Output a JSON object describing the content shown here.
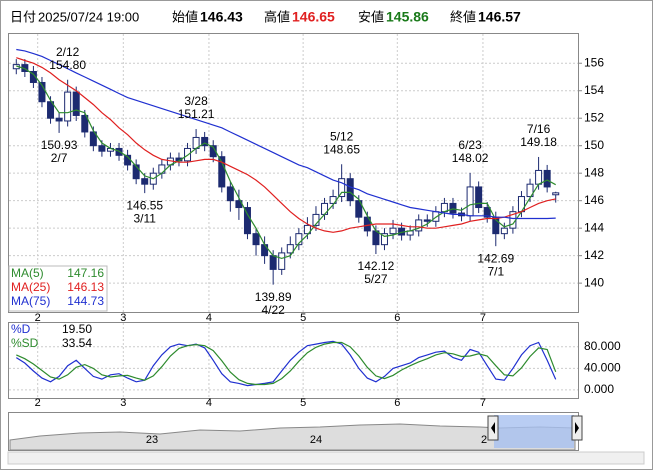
{
  "chart_data": {
    "type": "candlestick",
    "header": {
      "date_label": "日付",
      "date": "2025/07/24 19:00",
      "open_label": "始値",
      "open": 146.43,
      "high_label": "高値",
      "high": 146.65,
      "low_label": "安値",
      "low": 145.86,
      "close_label": "終値",
      "close": 146.57
    },
    "ylim": [
      137.9,
      158.2
    ],
    "yticks": [
      140,
      142,
      144,
      146,
      148,
      150,
      152,
      154,
      156
    ],
    "grid": true,
    "xticks": [
      {
        "value": 3,
        "label": "2"
      },
      {
        "value": 13,
        "label": "3"
      },
      {
        "value": 23,
        "label": "4"
      },
      {
        "value": 34,
        "label": "5"
      },
      {
        "value": 45,
        "label": "6"
      },
      {
        "value": 55,
        "label": "7"
      }
    ],
    "up_color": "#ffffff",
    "down_color": "#1c2a70",
    "open": [
      155.6,
      155.9,
      155.4,
      154.6,
      153.2,
      152.0,
      151.8,
      153.9,
      152.2,
      151.0,
      150.0,
      149.6,
      149.8,
      149.3,
      148.6,
      147.6,
      147.2,
      148.0,
      148.6,
      149.1,
      148.9,
      149.8,
      150.6,
      150.0,
      149.2,
      147.0,
      146.0,
      145.5,
      143.6,
      142.8,
      142.0,
      141.0,
      142.2,
      142.8,
      143.6,
      144.2,
      145.0,
      145.8,
      146.3,
      147.6,
      146.0,
      144.8,
      143.8,
      142.8,
      143.6,
      144.0,
      143.5,
      143.8,
      144.6,
      144.5,
      145.2,
      145.8,
      145.1,
      144.9,
      147.0,
      145.5,
      144.8,
      143.6,
      144.0,
      145.2,
      146.3,
      147.2,
      148.2,
      146.43
    ],
    "high": [
      156.3,
      156.3,
      155.8,
      155.0,
      153.6,
      152.4,
      154.8,
      154.3,
      152.6,
      151.4,
      150.4,
      150.2,
      150.2,
      149.7,
      149.0,
      148.0,
      148.4,
      149.0,
      149.5,
      149.5,
      150.2,
      151.21,
      151.0,
      150.4,
      149.6,
      147.4,
      146.8,
      145.9,
      144.0,
      143.4,
      142.4,
      142.6,
      143.4,
      144.0,
      144.8,
      145.6,
      146.2,
      146.8,
      148.65,
      148.0,
      146.4,
      145.2,
      144.2,
      144.0,
      144.6,
      144.4,
      144.2,
      145.0,
      145.0,
      145.6,
      146.2,
      146.2,
      145.5,
      148.02,
      147.4,
      145.9,
      145.2,
      144.4,
      145.6,
      146.7,
      147.6,
      149.18,
      148.6,
      146.65
    ],
    "low": [
      155.2,
      155.0,
      154.2,
      152.8,
      151.6,
      150.93,
      151.4,
      151.8,
      150.6,
      149.6,
      149.2,
      149.2,
      148.9,
      148.2,
      147.2,
      146.55,
      146.8,
      147.6,
      148.2,
      148.5,
      148.5,
      149.4,
      149.6,
      148.8,
      146.6,
      145.2,
      144.6,
      143.2,
      142.0,
      141.4,
      139.89,
      140.6,
      141.8,
      142.4,
      143.2,
      143.8,
      144.6,
      145.4,
      145.9,
      145.6,
      144.4,
      143.4,
      142.12,
      142.4,
      143.2,
      143.1,
      143.1,
      143.4,
      144.1,
      144.1,
      144.8,
      144.7,
      144.5,
      144.5,
      145.1,
      144.4,
      142.69,
      143.2,
      143.6,
      144.8,
      145.9,
      146.8,
      146.6,
      145.86
    ],
    "close": [
      155.9,
      155.4,
      154.6,
      153.2,
      152.0,
      151.8,
      153.9,
      152.2,
      151.0,
      150.0,
      149.6,
      149.8,
      149.3,
      148.6,
      147.6,
      147.2,
      148.0,
      148.6,
      149.1,
      148.9,
      149.8,
      150.6,
      150.0,
      149.2,
      147.0,
      146.0,
      145.5,
      143.6,
      142.8,
      142.0,
      141.0,
      142.2,
      142.8,
      143.6,
      144.2,
      145.0,
      145.8,
      146.3,
      147.6,
      146.0,
      144.8,
      143.8,
      142.8,
      143.6,
      144.0,
      143.5,
      143.8,
      144.6,
      144.5,
      145.2,
      145.8,
      145.1,
      144.9,
      147.0,
      145.5,
      144.8,
      143.6,
      144.0,
      145.2,
      146.3,
      147.2,
      148.2,
      147.0,
      146.57
    ],
    "series": [
      {
        "name": "MA(5)",
        "color": "#2e8b2e",
        "last": 147.16,
        "values": [
          155.8,
          155.6,
          155.2,
          154.4,
          153.3,
          152.4,
          152.4,
          152.6,
          152.4,
          151.1,
          150.2,
          149.8,
          149.6,
          149.2,
          148.5,
          147.8,
          147.6,
          148.0,
          148.6,
          148.9,
          149.3,
          149.8,
          150.2,
          149.9,
          148.8,
          147.4,
          146.2,
          145.0,
          144.0,
          142.8,
          142.0,
          141.8,
          142.0,
          142.9,
          143.5,
          144.3,
          145.0,
          145.7,
          146.6,
          146.6,
          146.1,
          144.9,
          143.8,
          143.4,
          143.5,
          143.7,
          143.8,
          144.0,
          144.3,
          144.8,
          145.2,
          145.4,
          145.3,
          145.7,
          145.8,
          145.8,
          144.6,
          144.1,
          144.3,
          145.2,
          146.2,
          147.2,
          147.5,
          147.16
        ]
      },
      {
        "name": "MA(25)",
        "color": "#e02020",
        "last": 146.13,
        "values": [
          156.4,
          156.2,
          156.0,
          155.7,
          155.3,
          154.8,
          154.4,
          154.0,
          153.5,
          153.0,
          152.4,
          151.9,
          151.3,
          150.8,
          150.2,
          149.7,
          149.3,
          149.0,
          148.9,
          148.8,
          148.8,
          148.9,
          149.0,
          149.0,
          148.8,
          148.5,
          148.2,
          147.9,
          147.5,
          147.0,
          146.4,
          145.8,
          145.2,
          144.7,
          144.3,
          144.0,
          143.8,
          143.7,
          143.8,
          144.0,
          144.1,
          144.2,
          144.3,
          144.3,
          144.3,
          144.2,
          144.1,
          144.1,
          144.0,
          144.0,
          144.1,
          144.2,
          144.3,
          144.5,
          144.6,
          144.7,
          144.7,
          144.8,
          145.0,
          145.2,
          145.5,
          145.8,
          146.0,
          146.13
        ]
      },
      {
        "name": "MA(75)",
        "color": "#2030d0",
        "last": 144.73,
        "values": [
          157.0,
          156.9,
          156.7,
          156.5,
          156.2,
          155.9,
          155.6,
          155.3,
          155.0,
          154.7,
          154.4,
          154.1,
          153.8,
          153.5,
          153.3,
          153.1,
          152.9,
          152.7,
          152.5,
          152.3,
          152.1,
          151.9,
          151.7,
          151.5,
          151.3,
          151.0,
          150.7,
          150.4,
          150.1,
          149.8,
          149.5,
          149.2,
          148.9,
          148.6,
          148.4,
          148.1,
          147.8,
          147.5,
          147.3,
          147.0,
          146.8,
          146.5,
          146.3,
          146.1,
          145.9,
          145.7,
          145.5,
          145.4,
          145.3,
          145.2,
          145.1,
          145.0,
          145.0,
          144.9,
          144.9,
          144.9,
          144.8,
          144.8,
          144.7,
          144.7,
          144.7,
          144.7,
          144.7,
          144.73
        ]
      }
    ],
    "annotations": [
      {
        "date": "2/12",
        "value": 154.8,
        "label": "154.80",
        "position": "above"
      },
      {
        "date": "2/7",
        "value": 150.93,
        "label": "150.93",
        "position": "below"
      },
      {
        "date": "3/11",
        "value": 146.55,
        "label": "146.55",
        "position": "below"
      },
      {
        "date": "3/28",
        "value": 151.21,
        "label": "151.21",
        "position": "above"
      },
      {
        "date": "4/22",
        "value": 139.89,
        "label": "139.89",
        "position": "below"
      },
      {
        "date": "5/12",
        "value": 148.65,
        "label": "148.65",
        "position": "above"
      },
      {
        "date": "5/27",
        "value": 142.12,
        "label": "142.12",
        "position": "below"
      },
      {
        "date": "6/23",
        "value": 148.02,
        "label": "148.02",
        "position": "above"
      },
      {
        "date": "7/1",
        "value": 142.69,
        "label": "142.69",
        "position": "below"
      },
      {
        "date": "7/16",
        "value": 149.18,
        "label": "149.18",
        "position": "above"
      }
    ],
    "stochastic": {
      "ylim": [
        -15,
        126
      ],
      "yticks": [
        {
          "value": 0,
          "label": "0.000"
        },
        {
          "value": 40,
          "label": "40.000"
        },
        {
          "value": 80,
          "label": "80.000"
        }
      ],
      "series": [
        {
          "name": "%D",
          "color": "#2030d0",
          "last": 19.5,
          "last_label": "19.50",
          "values": [
            60,
            50,
            35,
            22,
            15,
            25,
            45,
            55,
            40,
            25,
            20,
            28,
            30,
            22,
            15,
            18,
            45,
            65,
            80,
            85,
            82,
            85,
            78,
            55,
            30,
            15,
            12,
            8,
            10,
            12,
            15,
            35,
            55,
            70,
            82,
            85,
            88,
            90,
            85,
            65,
            40,
            22,
            15,
            25,
            40,
            45,
            50,
            60,
            65,
            70,
            72,
            60,
            55,
            75,
            70,
            45,
            20,
            18,
            40,
            65,
            82,
            88,
            55,
            19.5
          ]
        },
        {
          "name": "%SD",
          "color": "#2e8b2e",
          "last": 33.54,
          "values": [
            65,
            58,
            48,
            36,
            24,
            20,
            28,
            42,
            47,
            40,
            28,
            24,
            26,
            27,
            22,
            18,
            26,
            43,
            63,
            77,
            82,
            84,
            82,
            73,
            54,
            33,
            19,
            12,
            10,
            10,
            12,
            21,
            35,
            53,
            69,
            79,
            85,
            88,
            88,
            80,
            63,
            42,
            26,
            21,
            27,
            37,
            45,
            52,
            58,
            65,
            69,
            67,
            62,
            63,
            67,
            63,
            45,
            28,
            26,
            41,
            62,
            78,
            75,
            33.54
          ]
        }
      ]
    },
    "navigator": {
      "labels": [
        "23",
        "24",
        "2"
      ]
    }
  }
}
